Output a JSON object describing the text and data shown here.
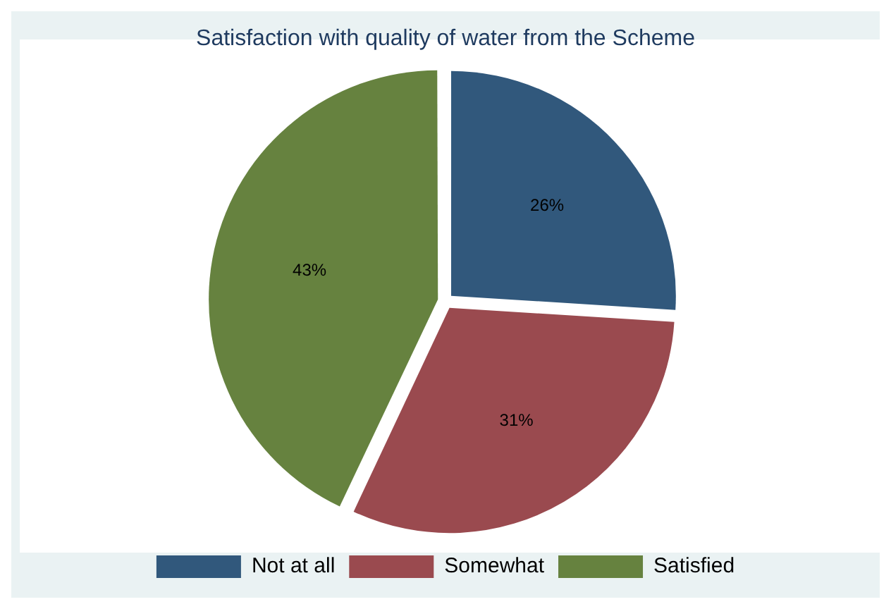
{
  "chart_data": {
    "type": "pie",
    "title": "Satisfaction with quality of water from the Scheme",
    "categories": [
      "Not at all",
      "Somewhat",
      "Satisfied"
    ],
    "values": [
      26,
      31,
      43
    ],
    "colors": [
      "#31587c",
      "#9a4a4f",
      "#66823f"
    ],
    "value_labels": [
      "26%",
      "31%",
      "43%"
    ],
    "legend": "bottom"
  }
}
